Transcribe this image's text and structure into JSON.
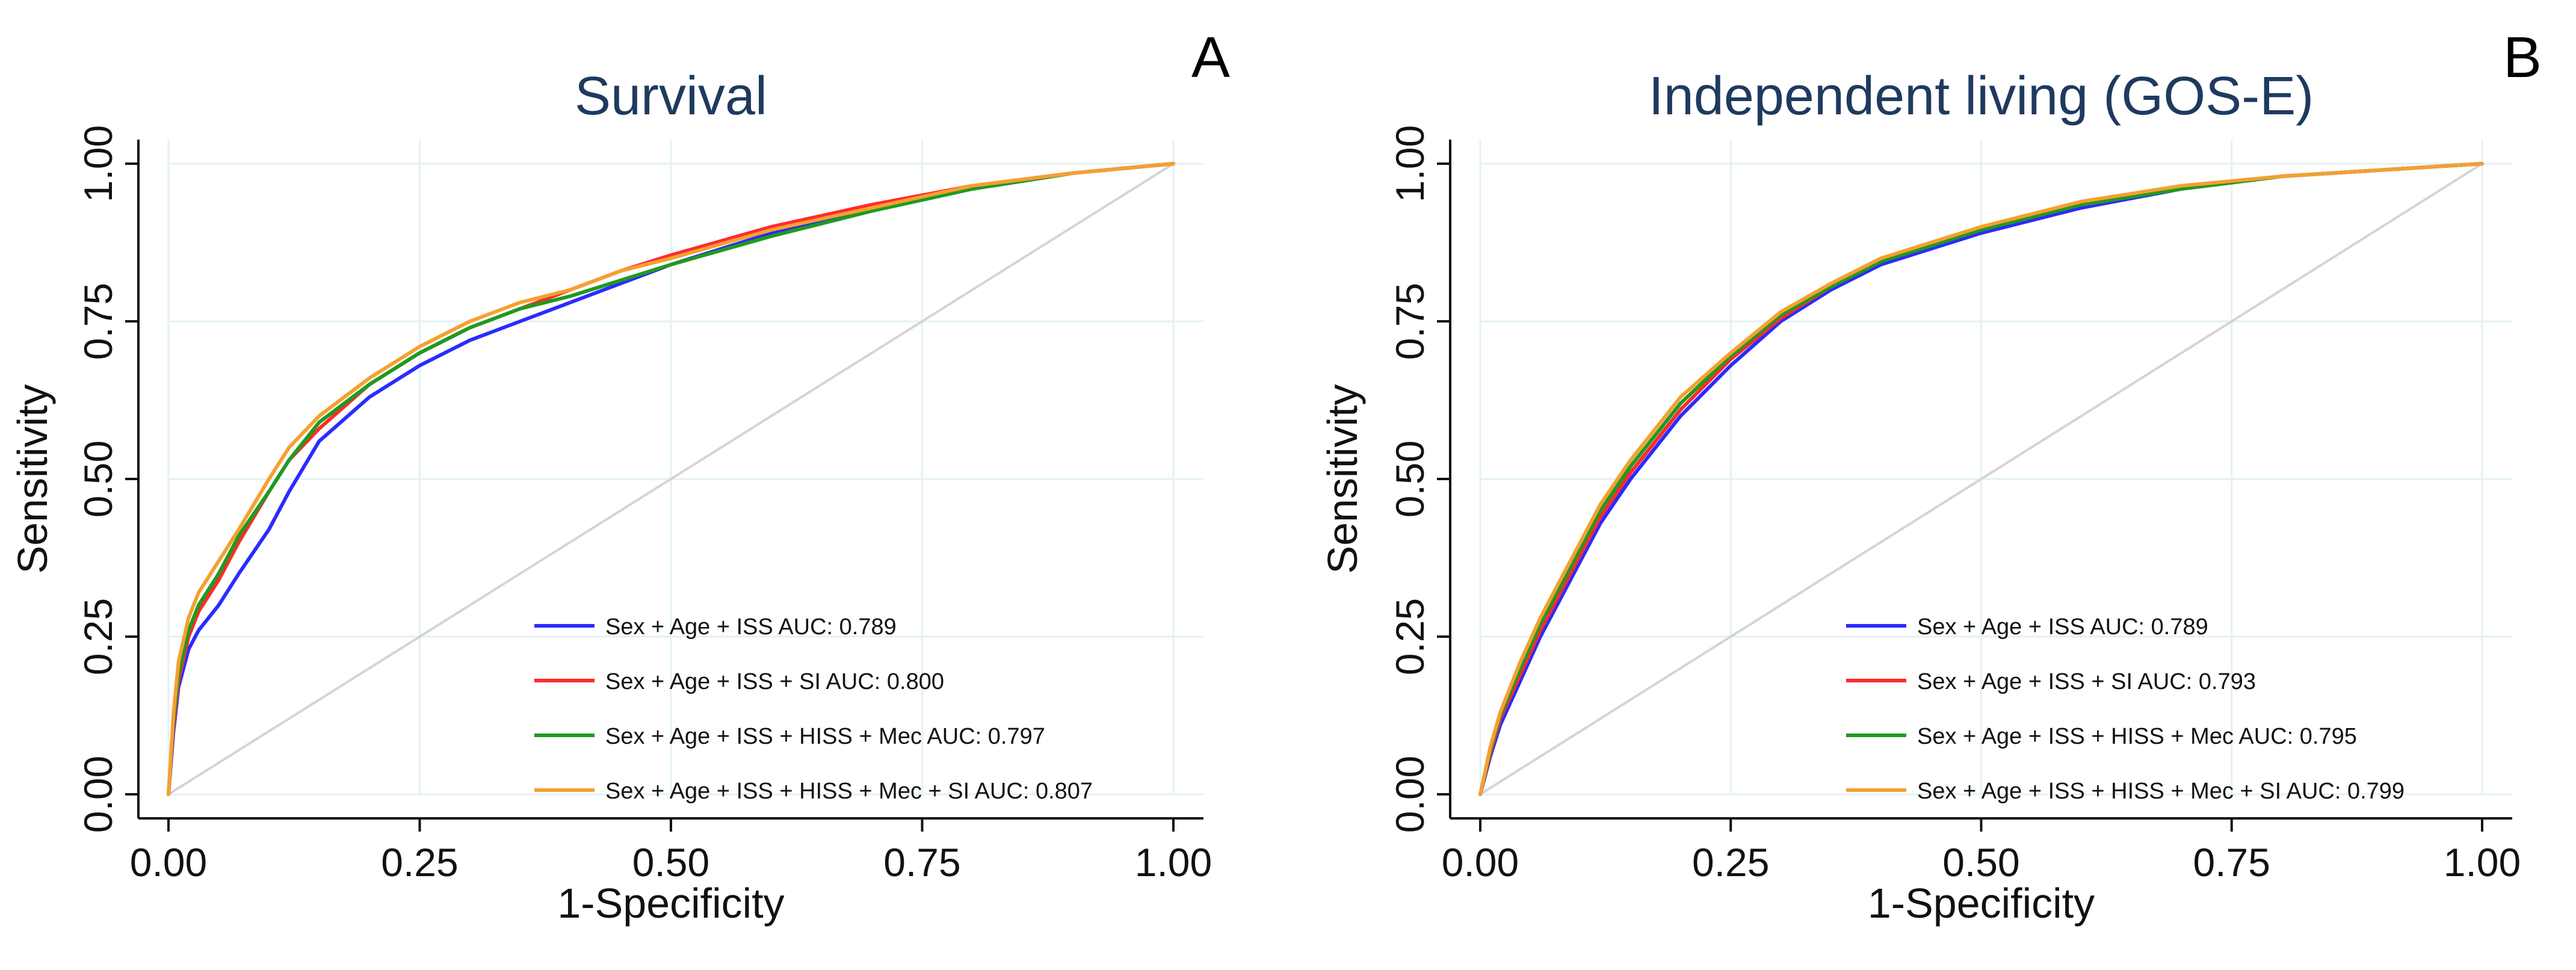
{
  "chart_data": [
    {
      "type": "line",
      "panel": "A",
      "title": "Survival",
      "xlabel": "1-Specificity",
      "ylabel": "Sensitivity",
      "xlim": [
        0,
        1
      ],
      "ylim": [
        0,
        1
      ],
      "x_ticks": [
        "0.00",
        "0.25",
        "0.50",
        "0.75",
        "1.00"
      ],
      "y_ticks": [
        "0.00",
        "0.25",
        "0.50",
        "0.75",
        "1.00"
      ],
      "grid": true,
      "legend_position": "bottom-right",
      "reference_line": [
        [
          0,
          0
        ],
        [
          1,
          1
        ]
      ],
      "series": [
        {
          "name": "Sex + Age + ISS AUC: 0.789",
          "color": "#2b2bff",
          "points": [
            [
              0,
              0
            ],
            [
              0.005,
              0.1
            ],
            [
              0.01,
              0.17
            ],
            [
              0.02,
              0.23
            ],
            [
              0.03,
              0.26
            ],
            [
              0.05,
              0.3
            ],
            [
              0.07,
              0.35
            ],
            [
              0.1,
              0.42
            ],
            [
              0.12,
              0.48
            ],
            [
              0.15,
              0.56
            ],
            [
              0.2,
              0.63
            ],
            [
              0.25,
              0.68
            ],
            [
              0.3,
              0.72
            ],
            [
              0.35,
              0.75
            ],
            [
              0.4,
              0.78
            ],
            [
              0.45,
              0.81
            ],
            [
              0.5,
              0.84
            ],
            [
              0.6,
              0.89
            ],
            [
              0.7,
              0.93
            ],
            [
              0.8,
              0.96
            ],
            [
              0.9,
              0.985
            ],
            [
              1,
              1
            ]
          ]
        },
        {
          "name": "Sex + Age + ISS + SI AUC: 0.800",
          "color": "#ff2b2b",
          "points": [
            [
              0,
              0
            ],
            [
              0.005,
              0.11
            ],
            [
              0.01,
              0.18
            ],
            [
              0.02,
              0.25
            ],
            [
              0.03,
              0.29
            ],
            [
              0.05,
              0.34
            ],
            [
              0.07,
              0.4
            ],
            [
              0.1,
              0.48
            ],
            [
              0.12,
              0.53
            ],
            [
              0.15,
              0.58
            ],
            [
              0.2,
              0.65
            ],
            [
              0.25,
              0.7
            ],
            [
              0.3,
              0.74
            ],
            [
              0.35,
              0.77
            ],
            [
              0.4,
              0.8
            ],
            [
              0.45,
              0.83
            ],
            [
              0.5,
              0.855
            ],
            [
              0.6,
              0.9
            ],
            [
              0.7,
              0.935
            ],
            [
              0.8,
              0.965
            ],
            [
              0.9,
              0.985
            ],
            [
              1,
              1
            ]
          ]
        },
        {
          "name": "Sex + Age + ISS + HISS + Mec AUC: 0.797",
          "color": "#1f9a1f",
          "points": [
            [
              0,
              0
            ],
            [
              0.005,
              0.12
            ],
            [
              0.01,
              0.19
            ],
            [
              0.02,
              0.26
            ],
            [
              0.03,
              0.3
            ],
            [
              0.05,
              0.35
            ],
            [
              0.07,
              0.41
            ],
            [
              0.1,
              0.48
            ],
            [
              0.12,
              0.53
            ],
            [
              0.15,
              0.59
            ],
            [
              0.2,
              0.65
            ],
            [
              0.25,
              0.7
            ],
            [
              0.3,
              0.74
            ],
            [
              0.35,
              0.77
            ],
            [
              0.4,
              0.79
            ],
            [
              0.45,
              0.815
            ],
            [
              0.5,
              0.84
            ],
            [
              0.6,
              0.885
            ],
            [
              0.7,
              0.925
            ],
            [
              0.8,
              0.96
            ],
            [
              0.9,
              0.985
            ],
            [
              1,
              1
            ]
          ]
        },
        {
          "name": "Sex + Age + ISS + HISS + Mec + SI AUC: 0.807",
          "color": "#f5a030",
          "points": [
            [
              0,
              0
            ],
            [
              0.005,
              0.13
            ],
            [
              0.01,
              0.21
            ],
            [
              0.02,
              0.28
            ],
            [
              0.03,
              0.32
            ],
            [
              0.05,
              0.37
            ],
            [
              0.07,
              0.42
            ],
            [
              0.1,
              0.5
            ],
            [
              0.12,
              0.55
            ],
            [
              0.15,
              0.6
            ],
            [
              0.2,
              0.66
            ],
            [
              0.25,
              0.71
            ],
            [
              0.3,
              0.75
            ],
            [
              0.35,
              0.78
            ],
            [
              0.4,
              0.8
            ],
            [
              0.45,
              0.83
            ],
            [
              0.5,
              0.85
            ],
            [
              0.6,
              0.895
            ],
            [
              0.7,
              0.93
            ],
            [
              0.8,
              0.965
            ],
            [
              0.9,
              0.985
            ],
            [
              1,
              1
            ]
          ]
        }
      ]
    },
    {
      "type": "line",
      "panel": "B",
      "title": "Independent living (GOS-E)",
      "xlabel": "1-Specificity",
      "ylabel": "Sensitivity",
      "xlim": [
        0,
        1
      ],
      "ylim": [
        0,
        1
      ],
      "x_ticks": [
        "0.00",
        "0.25",
        "0.50",
        "0.75",
        "1.00"
      ],
      "y_ticks": [
        "0.00",
        "0.25",
        "0.50",
        "0.75",
        "1.00"
      ],
      "grid": true,
      "legend_position": "bottom-right",
      "reference_line": [
        [
          0,
          0
        ],
        [
          1,
          1
        ]
      ],
      "series": [
        {
          "name": "Sex + Age + ISS AUC: 0.789",
          "color": "#2b2bff",
          "points": [
            [
              0,
              0
            ],
            [
              0.01,
              0.06
            ],
            [
              0.02,
              0.11
            ],
            [
              0.04,
              0.18
            ],
            [
              0.06,
              0.25
            ],
            [
              0.08,
              0.31
            ],
            [
              0.1,
              0.37
            ],
            [
              0.12,
              0.43
            ],
            [
              0.15,
              0.5
            ],
            [
              0.2,
              0.6
            ],
            [
              0.25,
              0.68
            ],
            [
              0.3,
              0.75
            ],
            [
              0.35,
              0.8
            ],
            [
              0.4,
              0.84
            ],
            [
              0.5,
              0.89
            ],
            [
              0.6,
              0.93
            ],
            [
              0.7,
              0.96
            ],
            [
              0.8,
              0.98
            ],
            [
              0.9,
              0.99
            ],
            [
              1,
              1
            ]
          ]
        },
        {
          "name": "Sex + Age + ISS + SI AUC: 0.793",
          "color": "#ff2b2b",
          "points": [
            [
              0,
              0
            ],
            [
              0.01,
              0.065
            ],
            [
              0.02,
              0.12
            ],
            [
              0.04,
              0.19
            ],
            [
              0.06,
              0.26
            ],
            [
              0.08,
              0.32
            ],
            [
              0.1,
              0.38
            ],
            [
              0.12,
              0.44
            ],
            [
              0.15,
              0.51
            ],
            [
              0.2,
              0.61
            ],
            [
              0.25,
              0.69
            ],
            [
              0.3,
              0.755
            ],
            [
              0.35,
              0.805
            ],
            [
              0.4,
              0.845
            ],
            [
              0.5,
              0.895
            ],
            [
              0.6,
              0.935
            ],
            [
              0.7,
              0.96
            ],
            [
              0.8,
              0.98
            ],
            [
              0.9,
              0.99
            ],
            [
              1,
              1
            ]
          ]
        },
        {
          "name": "Sex + Age + ISS + HISS + Mec AUC: 0.795",
          "color": "#1f9a1f",
          "points": [
            [
              0,
              0
            ],
            [
              0.01,
              0.07
            ],
            [
              0.02,
              0.125
            ],
            [
              0.04,
              0.2
            ],
            [
              0.06,
              0.27
            ],
            [
              0.08,
              0.33
            ],
            [
              0.1,
              0.39
            ],
            [
              0.12,
              0.45
            ],
            [
              0.15,
              0.52
            ],
            [
              0.2,
              0.62
            ],
            [
              0.25,
              0.695
            ],
            [
              0.3,
              0.76
            ],
            [
              0.35,
              0.805
            ],
            [
              0.4,
              0.845
            ],
            [
              0.5,
              0.895
            ],
            [
              0.6,
              0.935
            ],
            [
              0.7,
              0.96
            ],
            [
              0.8,
              0.98
            ],
            [
              0.9,
              0.99
            ],
            [
              1,
              1
            ]
          ]
        },
        {
          "name": "Sex + Age + ISS + HISS + Mec + SI AUC: 0.799",
          "color": "#f5a030",
          "points": [
            [
              0,
              0
            ],
            [
              0.01,
              0.075
            ],
            [
              0.02,
              0.13
            ],
            [
              0.04,
              0.21
            ],
            [
              0.06,
              0.28
            ],
            [
              0.08,
              0.34
            ],
            [
              0.1,
              0.4
            ],
            [
              0.12,
              0.46
            ],
            [
              0.15,
              0.53
            ],
            [
              0.2,
              0.63
            ],
            [
              0.25,
              0.7
            ],
            [
              0.3,
              0.765
            ],
            [
              0.35,
              0.81
            ],
            [
              0.4,
              0.85
            ],
            [
              0.5,
              0.9
            ],
            [
              0.6,
              0.94
            ],
            [
              0.7,
              0.965
            ],
            [
              0.8,
              0.98
            ],
            [
              0.9,
              0.99
            ],
            [
              1,
              1
            ]
          ]
        }
      ]
    }
  ]
}
